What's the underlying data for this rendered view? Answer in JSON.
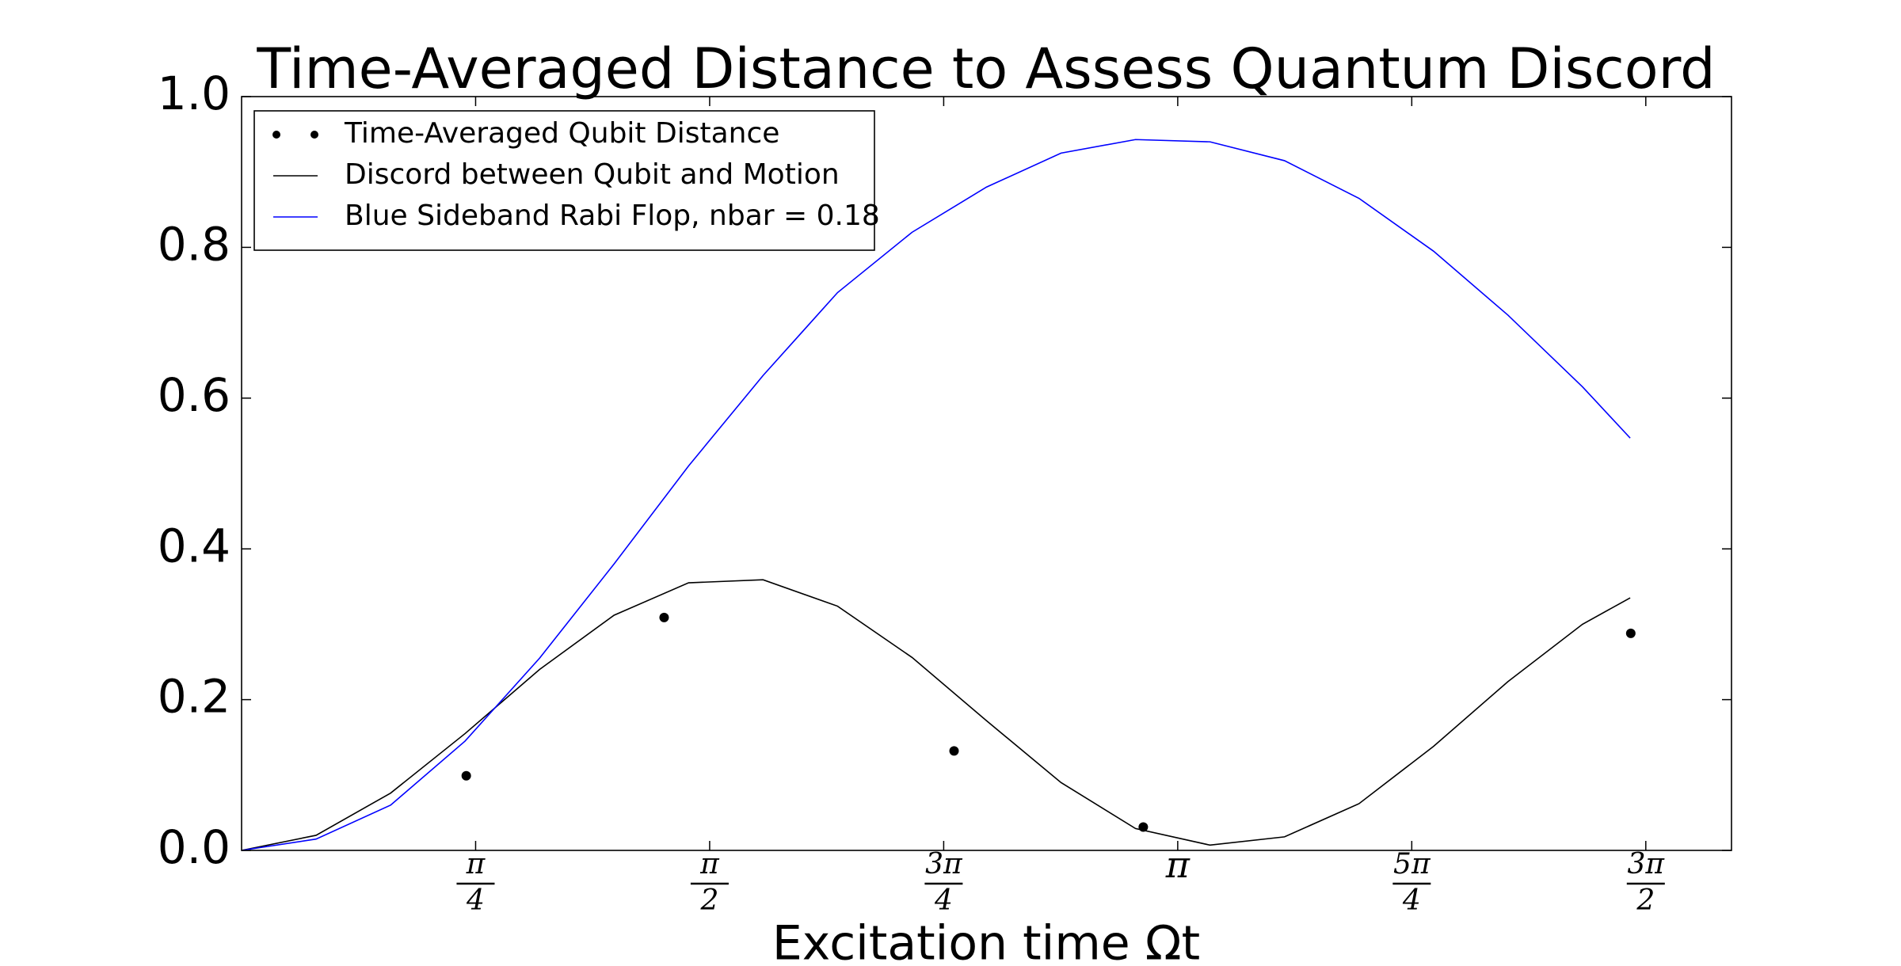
{
  "chart_data": {
    "type": "line",
    "title": "Time-Averaged Distance to Assess Quantum Discord",
    "x_label": "Excitation time Ωt",
    "xlim": [
      0,
      5
    ],
    "ylim": [
      0,
      1.0
    ],
    "xticks": [
      {
        "value": 0.7854,
        "label": "π/4"
      },
      {
        "value": 1.5708,
        "label": "π/2"
      },
      {
        "value": 2.3562,
        "label": "3π/4"
      },
      {
        "value": 3.1416,
        "label": "π"
      },
      {
        "value": 3.927,
        "label": "5π/4"
      },
      {
        "value": 4.7124,
        "label": "3π/2"
      }
    ],
    "yticks": [
      {
        "value": 0,
        "label": "0.0"
      },
      {
        "value": 0.2,
        "label": "0.2"
      },
      {
        "value": 0.4,
        "label": "0.4"
      },
      {
        "value": 0.6,
        "label": "0.6"
      },
      {
        "value": 0.8,
        "label": "0.8"
      },
      {
        "value": 1.0,
        "label": "1.0"
      }
    ],
    "legend": "upper left",
    "series": [
      {
        "name": "Time-Averaged Qubit Distance",
        "color": "#000000",
        "style": "dots",
        "x": [
          0.754,
          1.418,
          2.391,
          3.026,
          4.662
        ],
        "values": [
          0.099,
          0.309,
          0.132,
          0.031,
          0.288
        ]
      },
      {
        "name": "Discord between Qubit and Motion",
        "color": "#000000",
        "style": "line",
        "x": [
          0,
          0.25,
          0.5,
          0.75,
          1.0,
          1.25,
          1.5,
          1.75,
          2.0,
          2.25,
          2.5,
          2.75,
          3.0,
          3.25,
          3.5,
          3.75,
          4.0,
          4.25,
          4.5,
          4.66
        ],
        "values": [
          0,
          0.02,
          0.076,
          0.155,
          0.24,
          0.312,
          0.355,
          0.359,
          0.324,
          0.256,
          0.172,
          0.09,
          0.029,
          0.007,
          0.018,
          0.062,
          0.138,
          0.224,
          0.3,
          0.335
        ]
      },
      {
        "name": "Blue Sideband Rabi Flop, nbar = 0.18",
        "color": "#0000ff",
        "style": "line",
        "x": [
          0,
          0.25,
          0.5,
          0.75,
          1.0,
          1.25,
          1.5,
          1.75,
          2.0,
          2.25,
          2.5,
          2.75,
          3.0,
          3.25,
          3.5,
          3.75,
          4.0,
          4.25,
          4.5,
          4.66
        ],
        "values": [
          0,
          0.015,
          0.06,
          0.145,
          0.255,
          0.38,
          0.51,
          0.63,
          0.74,
          0.82,
          0.88,
          0.925,
          0.943,
          0.94,
          0.915,
          0.865,
          0.795,
          0.71,
          0.615,
          0.547
        ]
      }
    ]
  }
}
